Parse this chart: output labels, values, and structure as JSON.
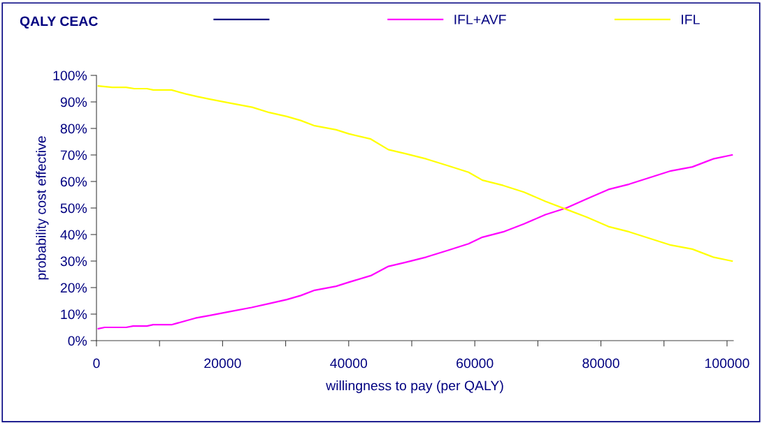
{
  "chart_data": {
    "type": "line",
    "title": "QALY CEAC",
    "xlabel": "willingness to pay (per QALY)",
    "ylabel": "probability cost effective",
    "xlim": [
      0,
      101000
    ],
    "xticks": [
      0,
      {
        "value": 10000,
        "label": null
      },
      20000,
      {
        "value": 30000,
        "label": null
      },
      40000,
      {
        "value": 50000,
        "label": null
      },
      60000,
      {
        "value": 70000,
        "label": null
      },
      80000,
      {
        "value": 90000,
        "label": null
      },
      100000
    ],
    "ylim": [
      0,
      1
    ],
    "yticks": [
      {
        "value": 0,
        "label": "0%"
      },
      {
        "value": 0.1,
        "label": "10%"
      },
      {
        "value": 0.2,
        "label": "20%"
      },
      {
        "value": 0.3,
        "label": "30%"
      },
      {
        "value": 0.4,
        "label": "40%"
      },
      {
        "value": 0.5,
        "label": "50%"
      },
      {
        "value": 0.6,
        "label": "60%"
      },
      {
        "value": 0.7,
        "label": "70%"
      },
      {
        "value": 0.8,
        "label": "80%"
      },
      {
        "value": 0.9,
        "label": "90%"
      },
      {
        "value": 1,
        "label": "100%"
      }
    ],
    "grid": false,
    "legend": "top",
    "marker": "none",
    "line_style": "solid",
    "series": [
      {
        "color": "#000080"
      },
      {
        "name": "IFL+AVF",
        "color": "#ff00ff",
        "x": [
          300,
          1300,
          4700,
          5800,
          8000,
          9000,
          11900,
          14200,
          15700,
          18000,
          21300,
          24600,
          27400,
          30200,
          32400,
          34600,
          38000,
          40000,
          43500,
          46300,
          49000,
          52300,
          55700,
          59000,
          61200,
          64500,
          67800,
          71200,
          74500,
          77800,
          81200,
          84500,
          87800,
          91100,
          94500,
          97800,
          100800
        ],
        "values": [
          0.045,
          0.05,
          0.05,
          0.055,
          0.055,
          0.06,
          0.06,
          0.075,
          0.085,
          0.095,
          0.11,
          0.125,
          0.14,
          0.155,
          0.17,
          0.19,
          0.205,
          0.22,
          0.245,
          0.28,
          0.295,
          0.315,
          0.34,
          0.365,
          0.39,
          0.41,
          0.44,
          0.475,
          0.5,
          0.535,
          0.57,
          0.59,
          0.615,
          0.64,
          0.655,
          0.685,
          0.7
        ]
      },
      {
        "name": "IFL",
        "color": "#ffff00",
        "x": [
          300,
          2500,
          4700,
          6000,
          8000,
          9000,
          11900,
          14200,
          16000,
          18000,
          21300,
          24700,
          27400,
          30200,
          32400,
          34600,
          38000,
          40000,
          43500,
          46300,
          49000,
          52300,
          55700,
          59000,
          61200,
          64500,
          67800,
          71200,
          74500,
          77800,
          81200,
          84500,
          87800,
          91100,
          94500,
          97800,
          100800
        ],
        "values": [
          0.96,
          0.955,
          0.955,
          0.95,
          0.95,
          0.945,
          0.945,
          0.93,
          0.92,
          0.91,
          0.895,
          0.88,
          0.86,
          0.845,
          0.83,
          0.81,
          0.795,
          0.78,
          0.76,
          0.72,
          0.705,
          0.685,
          0.66,
          0.635,
          0.605,
          0.585,
          0.56,
          0.525,
          0.495,
          0.465,
          0.43,
          0.41,
          0.385,
          0.36,
          0.345,
          0.315,
          0.3
        ]
      }
    ]
  }
}
